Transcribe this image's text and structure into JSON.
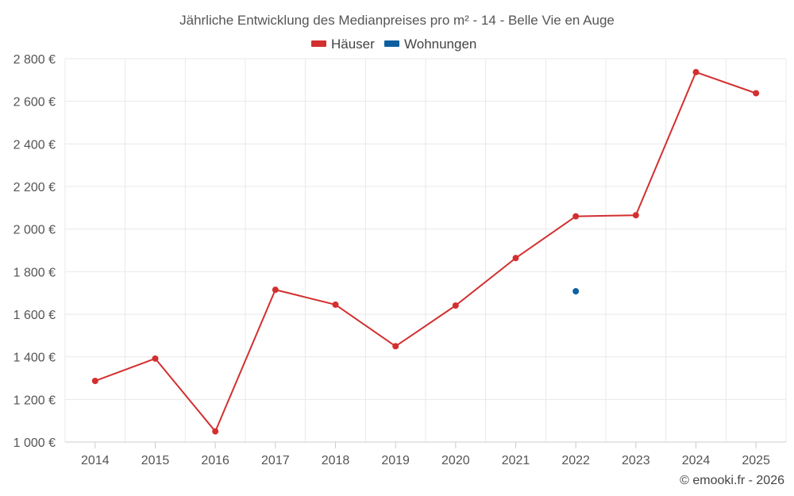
{
  "chart_data": {
    "type": "line",
    "title": "Jährliche Entwicklung des Medianpreises pro m² - 14 - Belle Vie en Auge",
    "categories": [
      "2014",
      "2015",
      "2016",
      "2017",
      "2018",
      "2019",
      "2020",
      "2021",
      "2022",
      "2023",
      "2024",
      "2025"
    ],
    "ylim": [
      1000,
      2800
    ],
    "yticks": [
      1000,
      1200,
      1400,
      1600,
      1800,
      2000,
      2200,
      2400,
      2600,
      2800
    ],
    "ytick_labels": [
      "1 000 €",
      "1 200 €",
      "1 400 €",
      "1 600 €",
      "1 800 €",
      "2 000 €",
      "2 200 €",
      "2 400 €",
      "2 600 €",
      "2 800 €"
    ],
    "legend_position": "top-center",
    "series": [
      {
        "name": "Häuser",
        "color": "#d32f2f",
        "values": [
          1287,
          1392,
          1050,
          1715,
          1645,
          1450,
          1641,
          1864,
          2060,
          2065,
          2737,
          2638
        ]
      },
      {
        "name": "Wohnungen",
        "color": "#0d5fa0",
        "values": [
          null,
          null,
          null,
          null,
          null,
          null,
          null,
          null,
          1708,
          null,
          null,
          null
        ]
      }
    ],
    "credit": "© emooki.fr - 2026"
  }
}
